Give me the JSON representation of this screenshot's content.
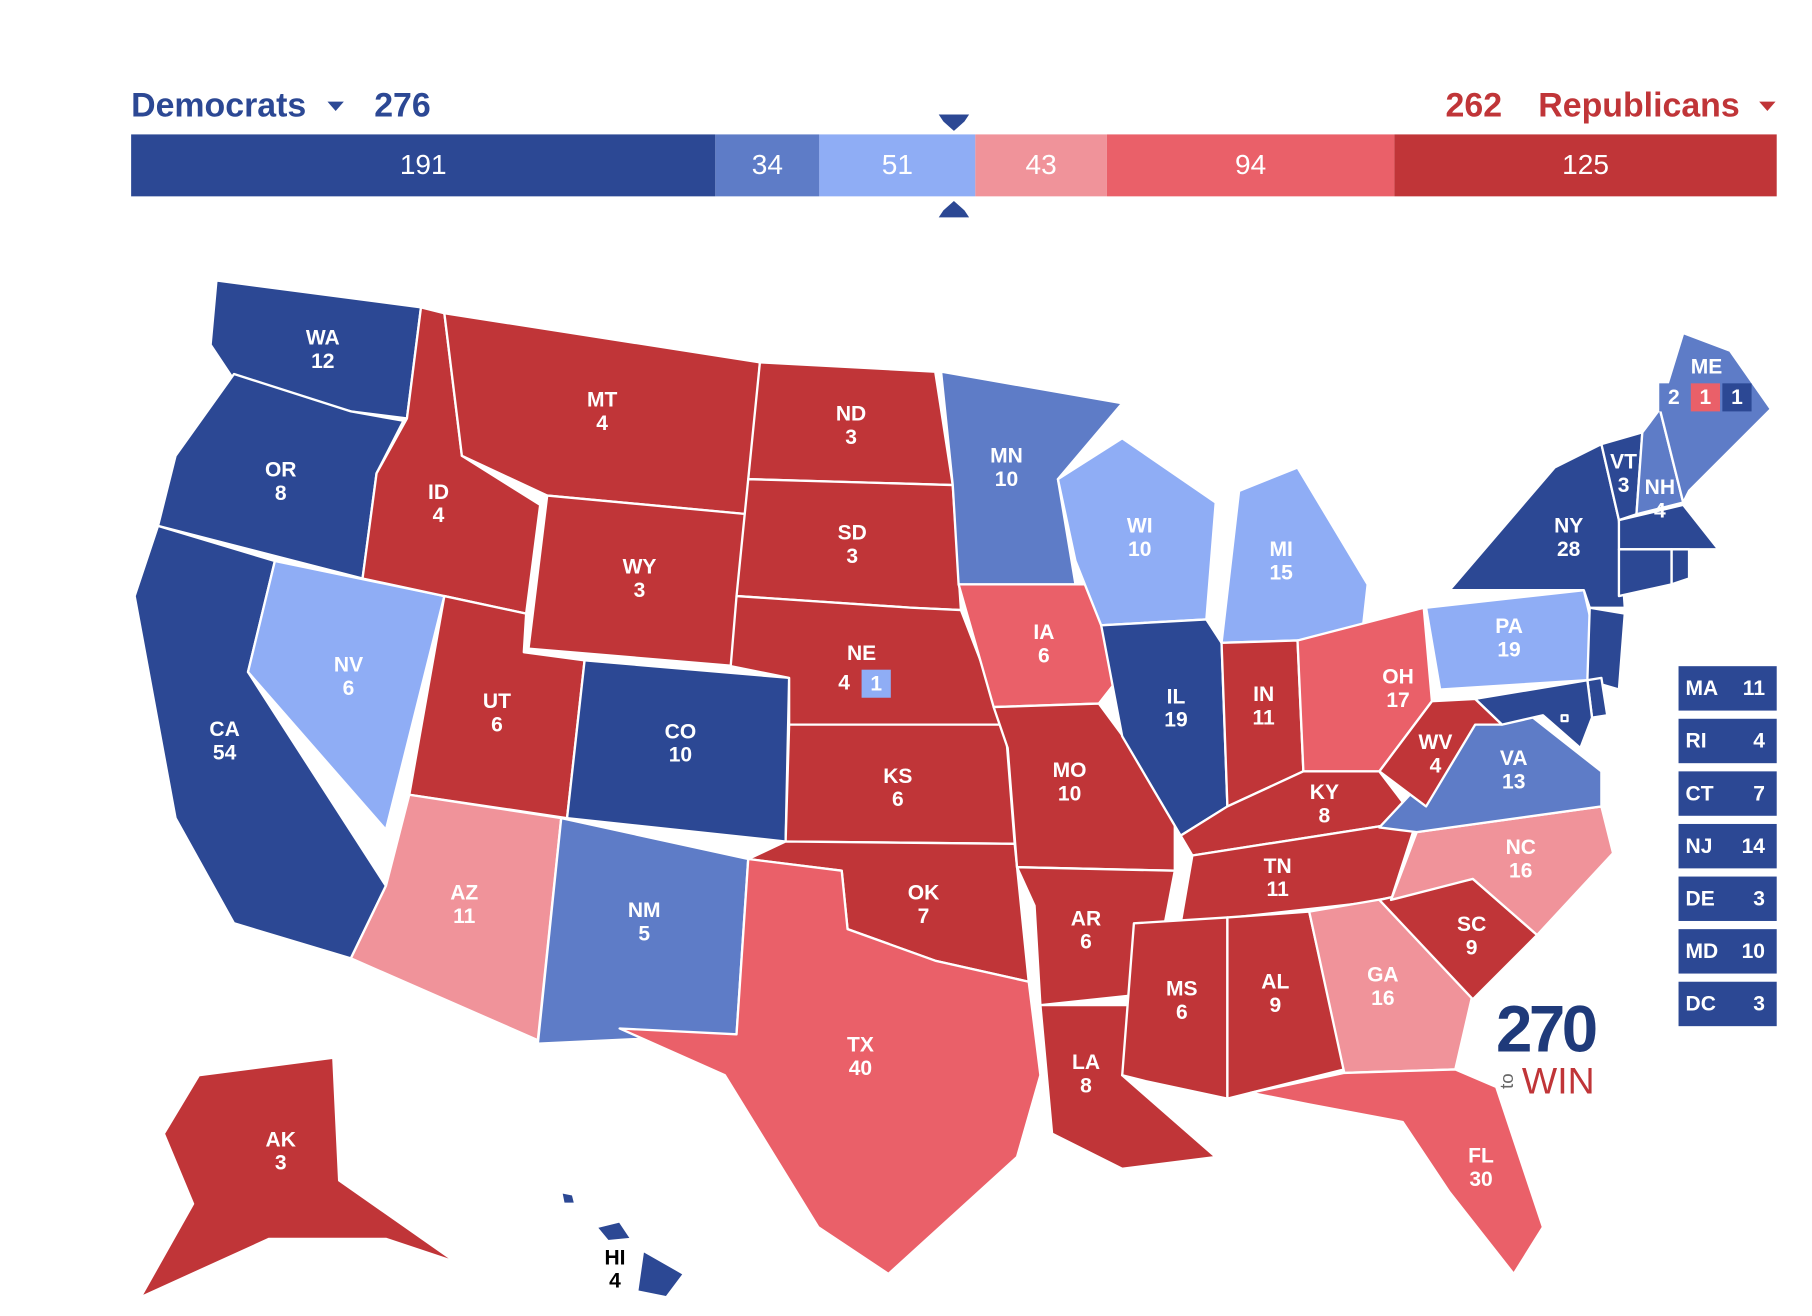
{
  "header": {
    "left": {
      "name": "Democrats",
      "total": 276,
      "color": "#2c4894"
    },
    "right": {
      "name": "Republicans",
      "total": 262,
      "color": "#c03538"
    }
  },
  "bar": {
    "segments": [
      {
        "value": 191,
        "color": "#2c4894"
      },
      {
        "value": 34,
        "color": "#5e7cc7"
      },
      {
        "value": 51,
        "color": "#8fadf5"
      },
      {
        "value": 43,
        "color": "#f0939a"
      },
      {
        "value": 94,
        "color": "#ea6069"
      },
      {
        "value": 125,
        "color": "#c03538"
      }
    ]
  },
  "states": [
    {
      "abbr": "WA",
      "votes": 12,
      "color": "#2c4894"
    },
    {
      "abbr": "OR",
      "votes": 8,
      "color": "#2c4894"
    },
    {
      "abbr": "CA",
      "votes": 54,
      "color": "#2c4894"
    },
    {
      "abbr": "NV",
      "votes": 6,
      "color": "#8fadf5"
    },
    {
      "abbr": "ID",
      "votes": 4,
      "color": "#c03538"
    },
    {
      "abbr": "MT",
      "votes": 4,
      "color": "#c03538"
    },
    {
      "abbr": "WY",
      "votes": 3,
      "color": "#c03538"
    },
    {
      "abbr": "UT",
      "votes": 6,
      "color": "#c03538"
    },
    {
      "abbr": "CO",
      "votes": 10,
      "color": "#2c4894"
    },
    {
      "abbr": "AZ",
      "votes": 11,
      "color": "#f0939a"
    },
    {
      "abbr": "NM",
      "votes": 5,
      "color": "#5e7cc7"
    },
    {
      "abbr": "ND",
      "votes": 3,
      "color": "#c03538"
    },
    {
      "abbr": "SD",
      "votes": 3,
      "color": "#c03538"
    },
    {
      "abbr": "NE",
      "votes": 4,
      "color": "#c03538",
      "districts": [
        {
          "votes": 1,
          "color": "#8fadf5"
        }
      ]
    },
    {
      "abbr": "KS",
      "votes": 6,
      "color": "#c03538"
    },
    {
      "abbr": "OK",
      "votes": 7,
      "color": "#c03538"
    },
    {
      "abbr": "TX",
      "votes": 40,
      "color": "#ea6069"
    },
    {
      "abbr": "MN",
      "votes": 10,
      "color": "#5e7cc7"
    },
    {
      "abbr": "IA",
      "votes": 6,
      "color": "#ea6069"
    },
    {
      "abbr": "MO",
      "votes": 10,
      "color": "#c03538"
    },
    {
      "abbr": "AR",
      "votes": 6,
      "color": "#c03538"
    },
    {
      "abbr": "LA",
      "votes": 8,
      "color": "#c03538"
    },
    {
      "abbr": "WI",
      "votes": 10,
      "color": "#8fadf5"
    },
    {
      "abbr": "IL",
      "votes": 19,
      "color": "#2c4894"
    },
    {
      "abbr": "MI",
      "votes": 15,
      "color": "#8fadf5"
    },
    {
      "abbr": "IN",
      "votes": 11,
      "color": "#c03538"
    },
    {
      "abbr": "OH",
      "votes": 17,
      "color": "#ea6069"
    },
    {
      "abbr": "KY",
      "votes": 8,
      "color": "#c03538"
    },
    {
      "abbr": "TN",
      "votes": 11,
      "color": "#c03538"
    },
    {
      "abbr": "MS",
      "votes": 6,
      "color": "#c03538"
    },
    {
      "abbr": "AL",
      "votes": 9,
      "color": "#c03538"
    },
    {
      "abbr": "GA",
      "votes": 16,
      "color": "#f0939a"
    },
    {
      "abbr": "FL",
      "votes": 30,
      "color": "#ea6069"
    },
    {
      "abbr": "SC",
      "votes": 9,
      "color": "#c03538"
    },
    {
      "abbr": "NC",
      "votes": 16,
      "color": "#f0939a"
    },
    {
      "abbr": "VA",
      "votes": 13,
      "color": "#5e7cc7"
    },
    {
      "abbr": "WV",
      "votes": 4,
      "color": "#c03538"
    },
    {
      "abbr": "PA",
      "votes": 19,
      "color": "#8fadf5"
    },
    {
      "abbr": "NY",
      "votes": 28,
      "color": "#2c4894"
    },
    {
      "abbr": "VT",
      "votes": 3,
      "color": "#2c4894"
    },
    {
      "abbr": "NH",
      "votes": 4,
      "color": "#5e7cc7"
    },
    {
      "abbr": "ME",
      "color": "#5e7cc7",
      "districts": [
        {
          "votes": 2,
          "color": "#5e7cc7"
        },
        {
          "votes": 1,
          "color": "#ea6069"
        },
        {
          "votes": 1,
          "color": "#2c4894"
        }
      ]
    },
    {
      "abbr": "MA",
      "votes": 11,
      "color": "#2c4894",
      "boxed": true
    },
    {
      "abbr": "RI",
      "votes": 4,
      "color": "#2c4894",
      "boxed": true
    },
    {
      "abbr": "CT",
      "votes": 7,
      "color": "#2c4894",
      "boxed": true
    },
    {
      "abbr": "NJ",
      "votes": 14,
      "color": "#2c4894",
      "boxed": true
    },
    {
      "abbr": "DE",
      "votes": 3,
      "color": "#2c4894",
      "boxed": true
    },
    {
      "abbr": "MD",
      "votes": 10,
      "color": "#2c4894",
      "boxed": true
    },
    {
      "abbr": "DC",
      "votes": 3,
      "color": "#2c4894",
      "boxed": true
    },
    {
      "abbr": "AK",
      "votes": 3,
      "color": "#c03538"
    },
    {
      "abbr": "HI",
      "votes": 4,
      "color": "#2c4894"
    }
  ],
  "logo": {
    "number": "270",
    "small": "to",
    "word": "WIN"
  }
}
